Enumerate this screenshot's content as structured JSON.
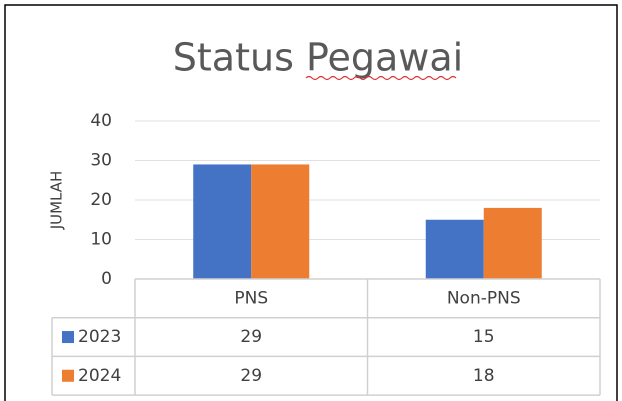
{
  "chart_data": {
    "type": "bar",
    "title": "Status Pegawai",
    "y_label": "JUMLAH",
    "categories": [
      "PNS",
      "Non-PNS"
    ],
    "series": [
      {
        "name": "2023",
        "color": "#4472c4",
        "values": [
          29,
          15
        ]
      },
      {
        "name": "2024",
        "color": "#ed7d31",
        "values": [
          29,
          18
        ]
      }
    ],
    "ylim": [
      0,
      40
    ],
    "yticks": [
      0,
      10,
      20,
      30,
      40
    ],
    "grid": true,
    "data_table": true
  }
}
